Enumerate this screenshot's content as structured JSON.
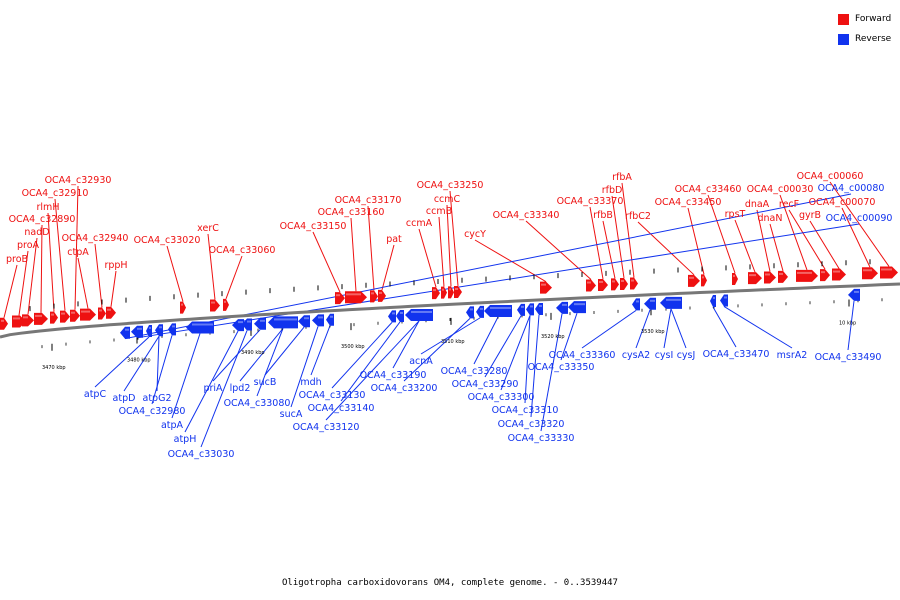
{
  "legend": {
    "items": [
      {
        "label": "Forward",
        "color": "#ee1111"
      },
      {
        "label": "Reverse",
        "color": "#1133ee"
      }
    ]
  },
  "caption": "Oligotropha carboxidovorans OM4, complete genome. - 0..3539447",
  "colors": {
    "forward": "#ee1111",
    "reverse": "#1133ee",
    "backbone": "#777777"
  },
  "kbp_labels": [
    {
      "text": "3470 kbp"
    },
    {
      "text": "3480 kbp"
    },
    {
      "text": "3490 kbp"
    },
    {
      "text": "3500 kbp"
    },
    {
      "text": "3510 kbp"
    },
    {
      "text": "3520 kbp"
    },
    {
      "text": "3530 kbp"
    },
    {
      "text": "10 kbp"
    }
  ],
  "forward_labels": [
    "proB",
    "proA",
    "nadD",
    "OCA4_c32890",
    "rlmH",
    "OCA4_c32910",
    "OCA4_c32930",
    "ctpA",
    "OCA4_c32940",
    "rppH",
    "OCA4_c33020",
    "xerC",
    "OCA4_c33060",
    "OCA4_c33150",
    "OCA4_c33160",
    "OCA4_c33170",
    "pat",
    "ccmA",
    "ccmB",
    "ccmC",
    "OCA4_c33250",
    "cycY",
    "OCA4_c33340",
    "OCA4_c33370",
    "rfbB",
    "rfbD",
    "rfbA",
    "rfbC2",
    "OCA4_c33450",
    "OCA4_c33460",
    "rpsT",
    "dnaA",
    "dnaN",
    "OCA4_c00030",
    "recF",
    "gyrB",
    "OCA4_c00070",
    "OCA4_c00060"
  ],
  "reverse_labels": [
    "OCA4_c00080",
    "OCA4_c00090",
    "atpC",
    "atpD",
    "atpG2",
    "OCA4_c32980",
    "atpA",
    "atpH",
    "OCA4_c33030",
    "priA",
    "lpd2",
    "OCA4_c33080",
    "sucB",
    "sucA",
    "mdh",
    "OCA4_c33130",
    "OCA4_c33140",
    "OCA4_c33120",
    "OCA4_c33190",
    "OCA4_c33200",
    "acnA",
    "OCA4_c33280",
    "OCA4_c33290",
    "OCA4_c33300",
    "OCA4_c33310",
    "OCA4_c33320",
    "OCA4_c33330",
    "OCA4_c33350",
    "OCA4_c33360",
    "cysA2",
    "cysI",
    "cysJ",
    "OCA4_c33470",
    "msrA2",
    "OCA4_c33490"
  ]
}
